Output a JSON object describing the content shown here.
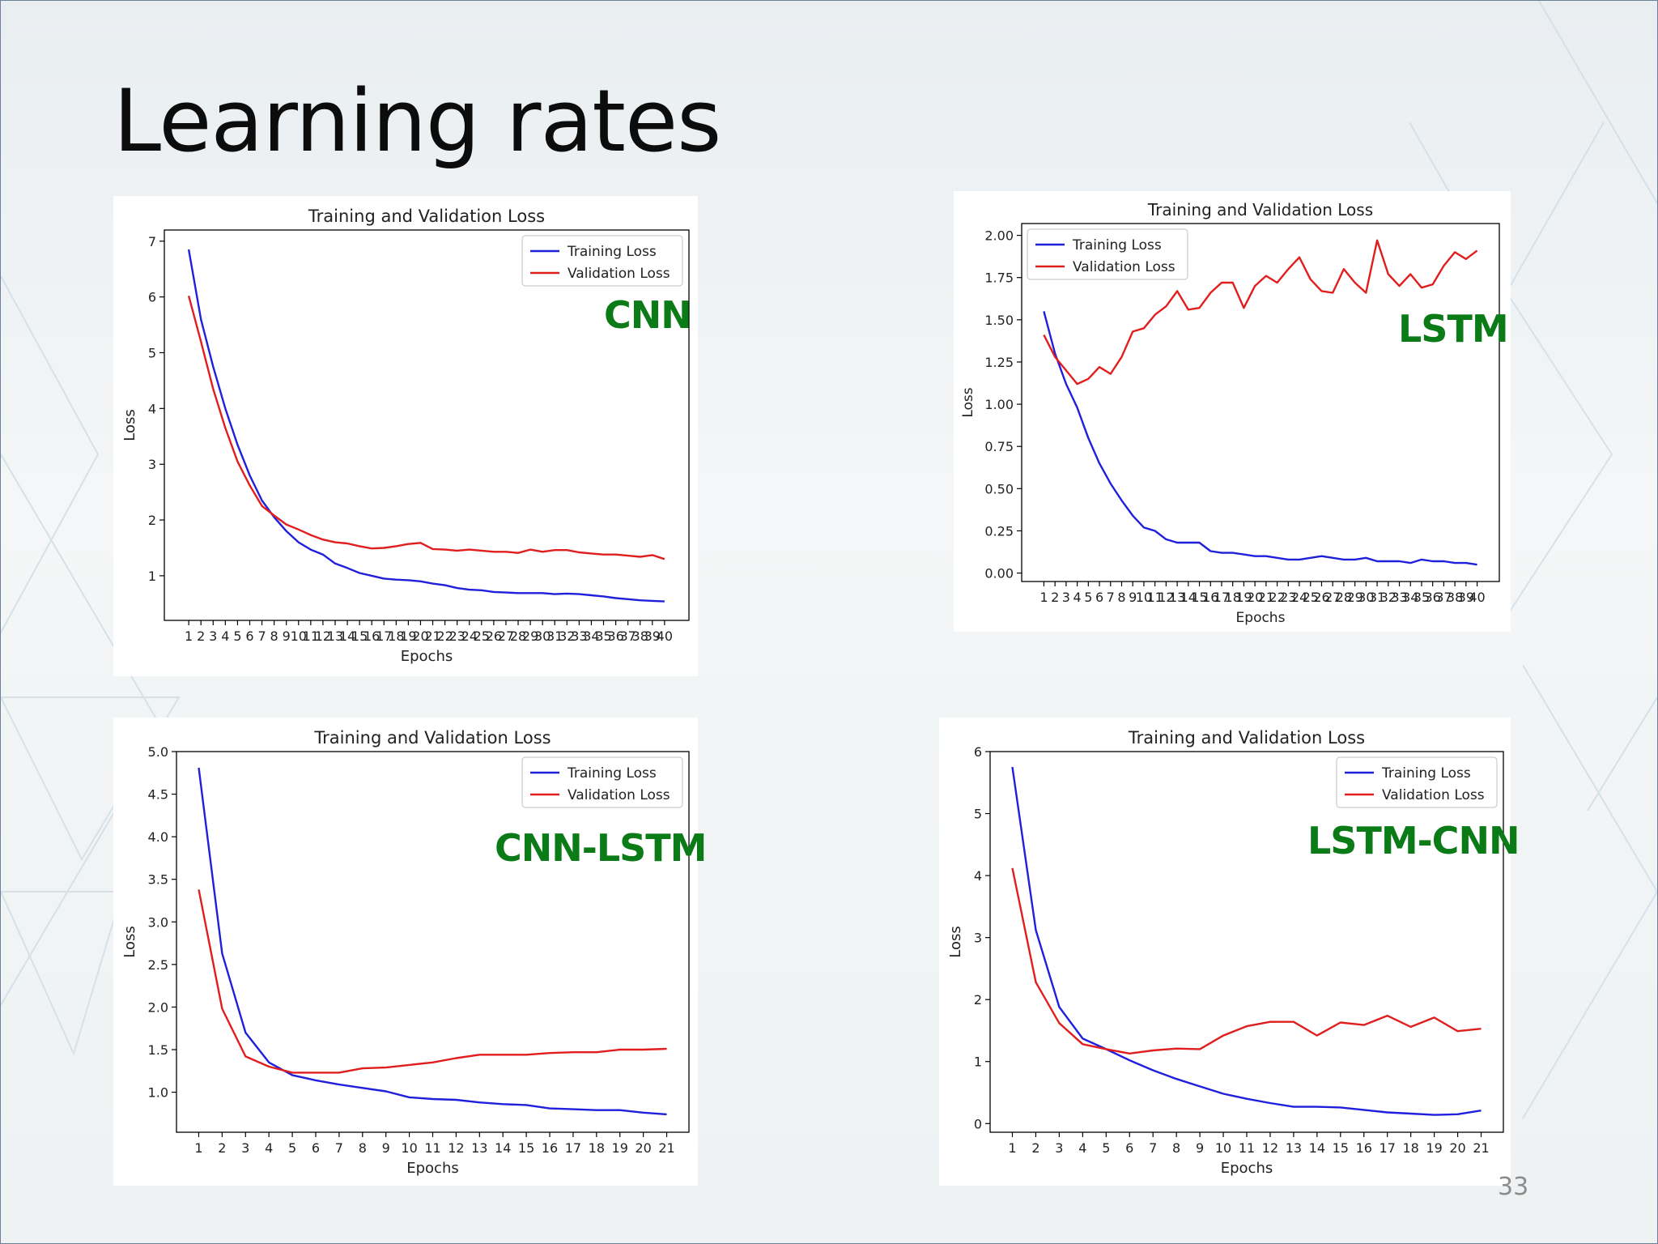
{
  "slide": {
    "title": "Learning rates",
    "page_number": "33"
  },
  "colors": {
    "training": "#1f1fdc",
    "validation": "#e01e1e",
    "model_label": "#0a7b16"
  },
  "chart_data": [
    {
      "type": "line",
      "model_label": "CNN",
      "title": "Training and Validation Loss",
      "xlabel": "Epochs",
      "ylabel": "Loss",
      "legend_position": "top-right",
      "grid": false,
      "xlim": [
        -1,
        42
      ],
      "ylim": [
        0.2,
        7.2
      ],
      "yticks": [
        "1",
        "2",
        "3",
        "4",
        "5",
        "6",
        "7"
      ],
      "x": [
        1,
        2,
        3,
        4,
        5,
        6,
        7,
        8,
        9,
        10,
        11,
        12,
        13,
        14,
        15,
        16,
        17,
        18,
        19,
        20,
        21,
        22,
        23,
        24,
        25,
        26,
        27,
        28,
        29,
        30,
        31,
        32,
        33,
        34,
        35,
        36,
        37,
        38,
        39,
        40
      ],
      "series": [
        {
          "name": "Training Loss",
          "values": [
            6.85,
            5.6,
            4.75,
            4.0,
            3.35,
            2.8,
            2.35,
            2.05,
            1.8,
            1.6,
            1.47,
            1.38,
            1.22,
            1.14,
            1.05,
            1.0,
            0.95,
            0.93,
            0.92,
            0.9,
            0.86,
            0.83,
            0.78,
            0.75,
            0.74,
            0.71,
            0.7,
            0.69,
            0.69,
            0.69,
            0.67,
            0.68,
            0.67,
            0.65,
            0.63,
            0.6,
            0.58,
            0.56,
            0.55,
            0.54
          ]
        },
        {
          "name": "Validation Loss",
          "values": [
            6.02,
            5.2,
            4.35,
            3.65,
            3.05,
            2.62,
            2.25,
            2.08,
            1.92,
            1.83,
            1.73,
            1.65,
            1.6,
            1.58,
            1.53,
            1.49,
            1.5,
            1.53,
            1.57,
            1.59,
            1.48,
            1.47,
            1.45,
            1.47,
            1.45,
            1.43,
            1.43,
            1.41,
            1.47,
            1.43,
            1.46,
            1.46,
            1.42,
            1.4,
            1.38,
            1.38,
            1.36,
            1.34,
            1.37,
            1.3
          ]
        }
      ]
    },
    {
      "type": "line",
      "model_label": "LSTM",
      "title": "Training and Validation Loss",
      "xlabel": "Epochs",
      "ylabel": "Loss",
      "legend_position": "top-left",
      "grid": false,
      "xlim": [
        -1,
        42
      ],
      "ylim": [
        -0.05,
        2.07
      ],
      "yticks": [
        "0.00",
        "0.25",
        "0.50",
        "0.75",
        "1.00",
        "1.25",
        "1.50",
        "1.75",
        "2.00"
      ],
      "x": [
        1,
        2,
        3,
        4,
        5,
        6,
        7,
        8,
        9,
        10,
        11,
        12,
        13,
        14,
        15,
        16,
        17,
        18,
        19,
        20,
        21,
        22,
        23,
        24,
        25,
        26,
        27,
        28,
        29,
        30,
        31,
        32,
        33,
        34,
        35,
        36,
        37,
        38,
        39,
        40
      ],
      "series": [
        {
          "name": "Training Loss",
          "values": [
            1.55,
            1.3,
            1.12,
            0.98,
            0.8,
            0.65,
            0.53,
            0.43,
            0.34,
            0.27,
            0.25,
            0.2,
            0.18,
            0.18,
            0.18,
            0.13,
            0.12,
            0.12,
            0.11,
            0.1,
            0.1,
            0.09,
            0.08,
            0.08,
            0.09,
            0.1,
            0.09,
            0.08,
            0.08,
            0.09,
            0.07,
            0.07,
            0.07,
            0.06,
            0.08,
            0.07,
            0.07,
            0.06,
            0.06,
            0.05
          ]
        },
        {
          "name": "Validation Loss",
          "values": [
            1.41,
            1.28,
            1.2,
            1.12,
            1.15,
            1.22,
            1.18,
            1.28,
            1.43,
            1.45,
            1.53,
            1.58,
            1.67,
            1.56,
            1.57,
            1.66,
            1.72,
            1.72,
            1.57,
            1.7,
            1.76,
            1.72,
            1.8,
            1.87,
            1.74,
            1.67,
            1.66,
            1.8,
            1.72,
            1.66,
            1.97,
            1.77,
            1.7,
            1.77,
            1.69,
            1.71,
            1.82,
            1.9,
            1.86,
            1.91
          ]
        }
      ]
    },
    {
      "type": "line",
      "model_label": "CNN-LSTM",
      "title": "Training and Validation Loss",
      "xlabel": "Epochs",
      "ylabel": "Loss",
      "legend_position": "top-right",
      "grid": false,
      "xlim": [
        0.05,
        21.95
      ],
      "ylim": [
        0.53,
        5.0
      ],
      "yticks": [
        "1.0",
        "1.5",
        "2.0",
        "2.5",
        "3.0",
        "3.5",
        "4.0",
        "4.5",
        "5.0"
      ],
      "x": [
        1,
        2,
        3,
        4,
        5,
        6,
        7,
        8,
        9,
        10,
        11,
        12,
        13,
        14,
        15,
        16,
        17,
        18,
        19,
        20,
        21
      ],
      "series": [
        {
          "name": "Training Loss",
          "values": [
            4.81,
            2.63,
            1.7,
            1.35,
            1.2,
            1.14,
            1.09,
            1.05,
            1.01,
            0.94,
            0.92,
            0.91,
            0.88,
            0.86,
            0.85,
            0.81,
            0.8,
            0.79,
            0.79,
            0.76,
            0.74
          ]
        },
        {
          "name": "Validation Loss",
          "values": [
            3.38,
            1.98,
            1.42,
            1.3,
            1.23,
            1.23,
            1.23,
            1.28,
            1.29,
            1.32,
            1.35,
            1.4,
            1.44,
            1.44,
            1.44,
            1.46,
            1.47,
            1.47,
            1.5,
            1.5,
            1.51
          ]
        }
      ]
    },
    {
      "type": "line",
      "model_label": "LSTM-CNN",
      "title": "Training and Validation Loss",
      "xlabel": "Epochs",
      "ylabel": "Loss",
      "legend_position": "top-right",
      "grid": false,
      "xlim": [
        0.05,
        21.95
      ],
      "ylim": [
        -0.14,
        6.0
      ],
      "yticks": [
        "0",
        "1",
        "2",
        "3",
        "4",
        "5",
        "6"
      ],
      "x": [
        1,
        2,
        3,
        4,
        5,
        6,
        7,
        8,
        9,
        10,
        11,
        12,
        13,
        14,
        15,
        16,
        17,
        18,
        19,
        20,
        21
      ],
      "series": [
        {
          "name": "Training Loss",
          "values": [
            5.75,
            3.12,
            1.88,
            1.37,
            1.2,
            1.02,
            0.86,
            0.72,
            0.6,
            0.48,
            0.4,
            0.33,
            0.27,
            0.27,
            0.26,
            0.22,
            0.18,
            0.16,
            0.14,
            0.15,
            0.21
          ]
        },
        {
          "name": "Validation Loss",
          "values": [
            4.12,
            2.28,
            1.62,
            1.28,
            1.2,
            1.13,
            1.18,
            1.21,
            1.2,
            1.42,
            1.57,
            1.64,
            1.64,
            1.42,
            1.63,
            1.59,
            1.74,
            1.56,
            1.71,
            1.49,
            1.53
          ]
        }
      ]
    }
  ]
}
